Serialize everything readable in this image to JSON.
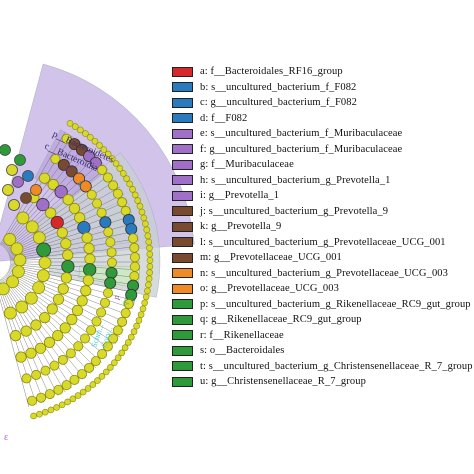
{
  "chart_data": {
    "type": "cladogram",
    "clade_labels": [
      {
        "text": "p__Bacteroidetes",
        "color": "#3a2a6e"
      },
      {
        "text": "c__Bacteroidia",
        "color": "#3a2a6e"
      }
    ],
    "node_letters": [
      "h",
      "d"
    ],
    "lower_labels": [
      {
        "text": "p",
        "color": "#7a3a9a"
      },
      {
        "text": "q",
        "color": "#6ab04c"
      },
      {
        "text": "Schm...",
        "color": "#44d0d0"
      },
      {
        "text": "Cory...",
        "color": "#44d0d0"
      }
    ],
    "corner_glyph": "ε",
    "legend": [
      {
        "key": "a",
        "label": "a: f__Bacteroidales_RF16_group",
        "color": "#d62828"
      },
      {
        "key": "b",
        "label": "b: s__uncultured_bacterium_f_F082",
        "color": "#2a7ac0"
      },
      {
        "key": "c",
        "label": "c: g__uncultured_bacterium_f_F082",
        "color": "#2a7ac0"
      },
      {
        "key": "d",
        "label": "d: f__F082",
        "color": "#2a7ac0"
      },
      {
        "key": "e",
        "label": "e: s__uncultured_bacterium_f_Muribaculaceae",
        "color": "#a070c8"
      },
      {
        "key": "f",
        "label": "f: g__uncultured_bacterium_f_Muribaculaceae",
        "color": "#a070c8"
      },
      {
        "key": "g",
        "label": "g: f__Muribaculaceae",
        "color": "#a070c8"
      },
      {
        "key": "h",
        "label": "h: s__uncultured_bacterium_g_Prevotella_1",
        "color": "#a070c8"
      },
      {
        "key": "i",
        "label": "i: g__Prevotella_1",
        "color": "#a070c8"
      },
      {
        "key": "j",
        "label": "j: s__uncultured_bacterium_g_Prevotella_9",
        "color": "#7a4a30"
      },
      {
        "key": "k",
        "label": "k: g__Prevotella_9",
        "color": "#7a4a30"
      },
      {
        "key": "l",
        "label": "l: s__uncultured_bacterium_g_Prevotellaceae_UCG_001",
        "color": "#7a4a30"
      },
      {
        "key": "m",
        "label": "m: g__Prevotellaceae_UCG_001",
        "color": "#7a4a30"
      },
      {
        "key": "n",
        "label": "n: s__uncultured_bacterium_g_Prevotellaceae_UCG_003",
        "color": "#f08a24"
      },
      {
        "key": "o",
        "label": "o: g__Prevotellaceae_UCG_003",
        "color": "#f08a24"
      },
      {
        "key": "p",
        "label": "p: s__uncultured_bacterium_g_Rikenellaceae_RC9_gut_group",
        "color": "#2e9a3a"
      },
      {
        "key": "q",
        "label": "q: g__Rikenellaceae_RC9_gut_group",
        "color": "#2e9a3a"
      },
      {
        "key": "r",
        "label": "r: f__Rikenellaceae",
        "color": "#2e9a3a"
      },
      {
        "key": "s",
        "label": "s: o__Bacteroidales",
        "color": "#2e9a3a"
      },
      {
        "key": "t",
        "label": "t: s__uncultured_bacterium_g_Christensenellaceae_R_7_group",
        "color": "#2e9a3a"
      },
      {
        "key": "u",
        "label": "u: g__Christensenellaceae_R_7_group",
        "color": "#2e9a3a"
      }
    ],
    "colors": {
      "node_default": "#d9d92a",
      "node_stroke": "#8a8a10",
      "sector_purple": "#c9b8e6",
      "sector_gray": "#c8cfd3",
      "sector_green": "#cde8c2"
    }
  }
}
